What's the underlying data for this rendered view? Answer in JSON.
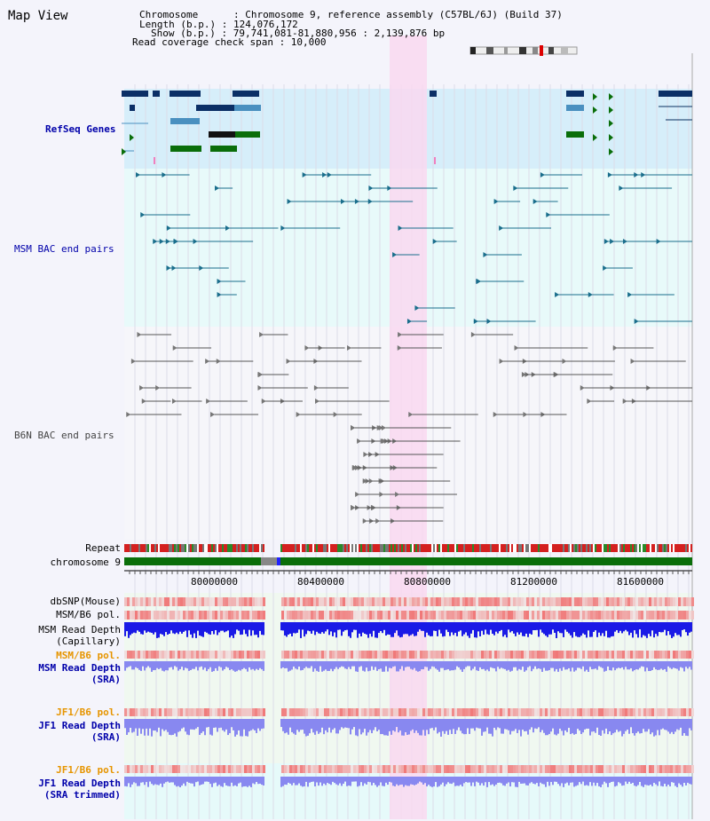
{
  "title": "Map View",
  "info": {
    "line1": "Chromosome      : Chromosome 9, reference assembly (C57BL/6J) (Build 37)",
    "line2": "Length (b.p.) : 124,076,172",
    "line3": "Show (b.p.) : 79,741,081-81,880,956 : 2,139,876 bp",
    "line4": "Read coverage check span : 10,000"
  },
  "tracks": {
    "refseq": "RefSeq Genes",
    "msm_bac": "MSM BAC end pairs",
    "b6n_bac": "B6N BAC end pairs",
    "repeat": "Repeat",
    "chromosome": "chromosome 9",
    "dbsnp": "dbSNP(Mouse)",
    "msm_b6_pol": "MSM/B6 pol.",
    "msm_depth_cap_1": "MSM Read Depth",
    "msm_depth_cap_2": "(Capillary)",
    "msm_b6_pol_sra": "MSM/B6 pol.",
    "msm_depth_sra_1": "MSM Read Depth",
    "msm_depth_sra_2": "(SRA)",
    "jf1_b6_pol": "JF1/B6 pol.",
    "jf1_depth_sra_1": "JF1 Read Depth",
    "jf1_depth_sra_2": "(SRA)",
    "jf1_b6_pol_trim": "JF1/B6 pol.",
    "jf1_depth_trim_1": "JF1 Read Depth",
    "jf1_depth_trim_2": "(SRA trimmed)"
  },
  "axis": {
    "ticks": [
      "80000000",
      "80400000",
      "80800000",
      "81200000",
      "81600000"
    ]
  },
  "colors": {
    "refseq_bg": "#d6eefa",
    "bac_bg": "#e8fafa",
    "highlight": "#f9d8f0",
    "gene_dark": "#0b2f66",
    "gene_light": "#4a90c0",
    "gene_green": "#0a6e0a",
    "msm_bac": "#1a6e8c",
    "b6n_bac": "#555555",
    "chrom_green": "#0a6e0a",
    "depth_blue": "#1a1ae6",
    "depth_light": "#8888f0",
    "pol_red": "#f05050"
  }
}
